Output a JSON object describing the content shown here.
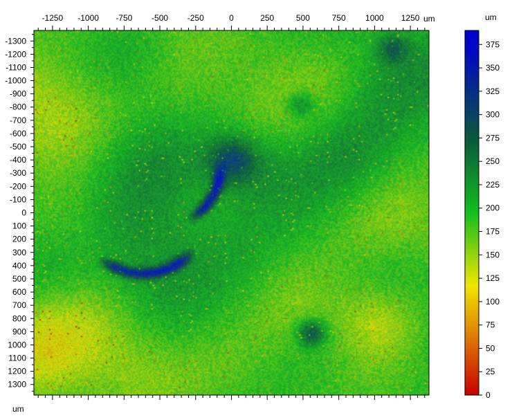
{
  "chart_data": {
    "type": "heatmap",
    "title": "",
    "x_axis": {
      "unit_label": "um",
      "range": [
        -1380,
        1380
      ],
      "ticks": [
        -1250,
        -1000,
        -750,
        -500,
        -250,
        0,
        250,
        500,
        750,
        1000,
        1250
      ],
      "minor_step": 50,
      "position": "top"
    },
    "y_axis": {
      "unit_label": "um",
      "range": [
        -1380,
        1380
      ],
      "ticks": [
        -1300,
        -1200,
        -1100,
        -1000,
        -900,
        -800,
        -700,
        -600,
        -500,
        -400,
        -300,
        -200,
        -100,
        0,
        100,
        200,
        300,
        400,
        500,
        600,
        700,
        800,
        900,
        1000,
        1100,
        1200,
        1300
      ],
      "inverted": true,
      "position": "left"
    },
    "colorbar": {
      "unit_label": "um",
      "range": [
        0,
        390
      ],
      "ticks": [
        0,
        25,
        50,
        75,
        100,
        125,
        150,
        175,
        200,
        225,
        250,
        275,
        300,
        325,
        350,
        375
      ],
      "colormap": [
        "#c80000",
        "#f0e600",
        "#14be1e",
        "#0a5a3c",
        "#0000d2"
      ],
      "position": "right"
    },
    "height_field": {
      "base_um": 185,
      "noise_um": 20,
      "features": [
        {
          "kind": "dome",
          "x": -1250,
          "y": -720,
          "r": 280,
          "dh": -45
        },
        {
          "kind": "dome",
          "x": -1280,
          "y": 1050,
          "r": 300,
          "dh": -55
        },
        {
          "kind": "dome",
          "x": -830,
          "y": 930,
          "r": 260,
          "dh": -30
        },
        {
          "kind": "dome",
          "x": 1040,
          "y": 810,
          "r": 200,
          "dh": -55
        },
        {
          "kind": "dome",
          "x": 1090,
          "y": 80,
          "r": 280,
          "dh": -35
        },
        {
          "kind": "dome",
          "x": 480,
          "y": 720,
          "r": 280,
          "dh": -35
        },
        {
          "kind": "dome",
          "x": -1120,
          "y": 150,
          "r": 260,
          "dh": -28
        },
        {
          "kind": "dome",
          "x": -330,
          "y": -870,
          "r": 330,
          "dh": -25
        },
        {
          "kind": "dome",
          "x": 480,
          "y": -900,
          "r": 300,
          "dh": -22
        },
        {
          "kind": "dome",
          "x": -30,
          "y": 1150,
          "r": 280,
          "dh": -20
        },
        {
          "kind": "dome",
          "x": -600,
          "y": 1180,
          "r": 200,
          "dh": -18
        },
        {
          "kind": "dome",
          "x": 900,
          "y": 1180,
          "r": 260,
          "dh": -20
        },
        {
          "kind": "dome",
          "x": -500,
          "y": -330,
          "r": 330,
          "dh": 50
        },
        {
          "kind": "dome",
          "x": -640,
          "y": 280,
          "r": 310,
          "dh": 48
        },
        {
          "kind": "dome",
          "x": 780,
          "y": -420,
          "r": 320,
          "dh": 48
        },
        {
          "kind": "dome",
          "x": 100,
          "y": -360,
          "r": 200,
          "dh": 45
        },
        {
          "kind": "dome",
          "x": 1200,
          "y": -1150,
          "r": 330,
          "dh": 40
        },
        {
          "kind": "dome",
          "x": -700,
          "y": -1170,
          "r": 220,
          "dh": 20
        },
        {
          "kind": "dome",
          "x": 120,
          "y": 600,
          "r": 360,
          "dh": 28
        },
        {
          "kind": "dome",
          "x": 1150,
          "y": 560,
          "r": 260,
          "dh": 22
        },
        {
          "kind": "dome",
          "x": 700,
          "y": 1100,
          "r": 260,
          "dh": 28
        },
        {
          "kind": "dome",
          "x": -1300,
          "y": 430,
          "r": 230,
          "dh": 25
        },
        {
          "kind": "arc",
          "x": -520,
          "y": -330,
          "r": 440,
          "a0": -8,
          "a1": 62,
          "w": 28,
          "dh": 150
        },
        {
          "kind": "arc",
          "x": -620,
          "y": 20,
          "r": 440,
          "a0": 35,
          "a1": 135,
          "w": 30,
          "dh": 140
        },
        {
          "kind": "dome",
          "x": 0,
          "y": -400,
          "r": 110,
          "dh": 90
        },
        {
          "kind": "dome",
          "x": 560,
          "y": 910,
          "r": 70,
          "dh": 110
        },
        {
          "kind": "dome",
          "x": 1130,
          "y": -1240,
          "r": 70,
          "dh": 70
        },
        {
          "kind": "dome",
          "x": 480,
          "y": -820,
          "r": 70,
          "dh": 65
        }
      ]
    }
  }
}
